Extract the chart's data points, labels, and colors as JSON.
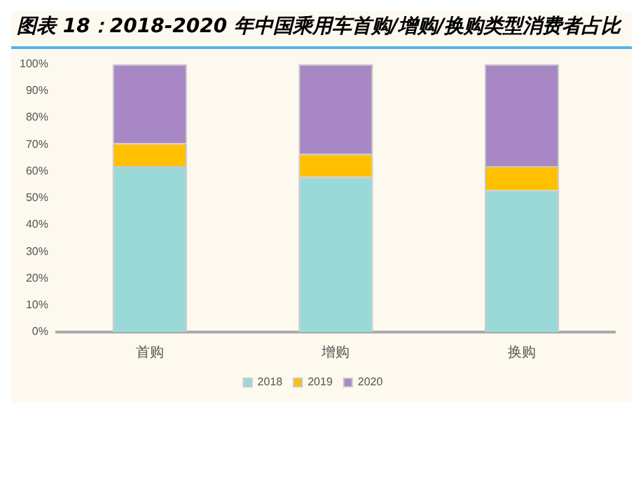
{
  "chart_data": {
    "type": "bar",
    "title": "图表 18：2018-2020 年中国乘用车首购/增购/换购类型消费者占比",
    "categories": [
      "首购",
      "增购",
      "换购"
    ],
    "series": [
      {
        "name": "2018",
        "color": "#9bd9d9",
        "values": [
          62,
          58,
          53
        ]
      },
      {
        "name": "2019",
        "color": "#ffc000",
        "values": [
          8.5,
          8.5,
          9
        ]
      },
      {
        "name": "2020",
        "color": "#a888c4",
        "values": [
          29.5,
          33.5,
          38
        ]
      }
    ],
    "stacked": true,
    "ylim": [
      0,
      100
    ],
    "yticks": [
      {
        "value": 0,
        "label": "0%"
      },
      {
        "value": 10,
        "label": "10%"
      },
      {
        "value": 20,
        "label": "20%"
      },
      {
        "value": 30,
        "label": "30%"
      },
      {
        "value": 40,
        "label": "40%"
      },
      {
        "value": 50,
        "label": "50%"
      },
      {
        "value": 60,
        "label": "60%"
      },
      {
        "value": 70,
        "label": "70%"
      },
      {
        "value": 80,
        "label": "80%"
      },
      {
        "value": 90,
        "label": "90%"
      },
      {
        "value": 100,
        "label": "100%"
      }
    ],
    "grid": false,
    "legend": "bottom"
  }
}
